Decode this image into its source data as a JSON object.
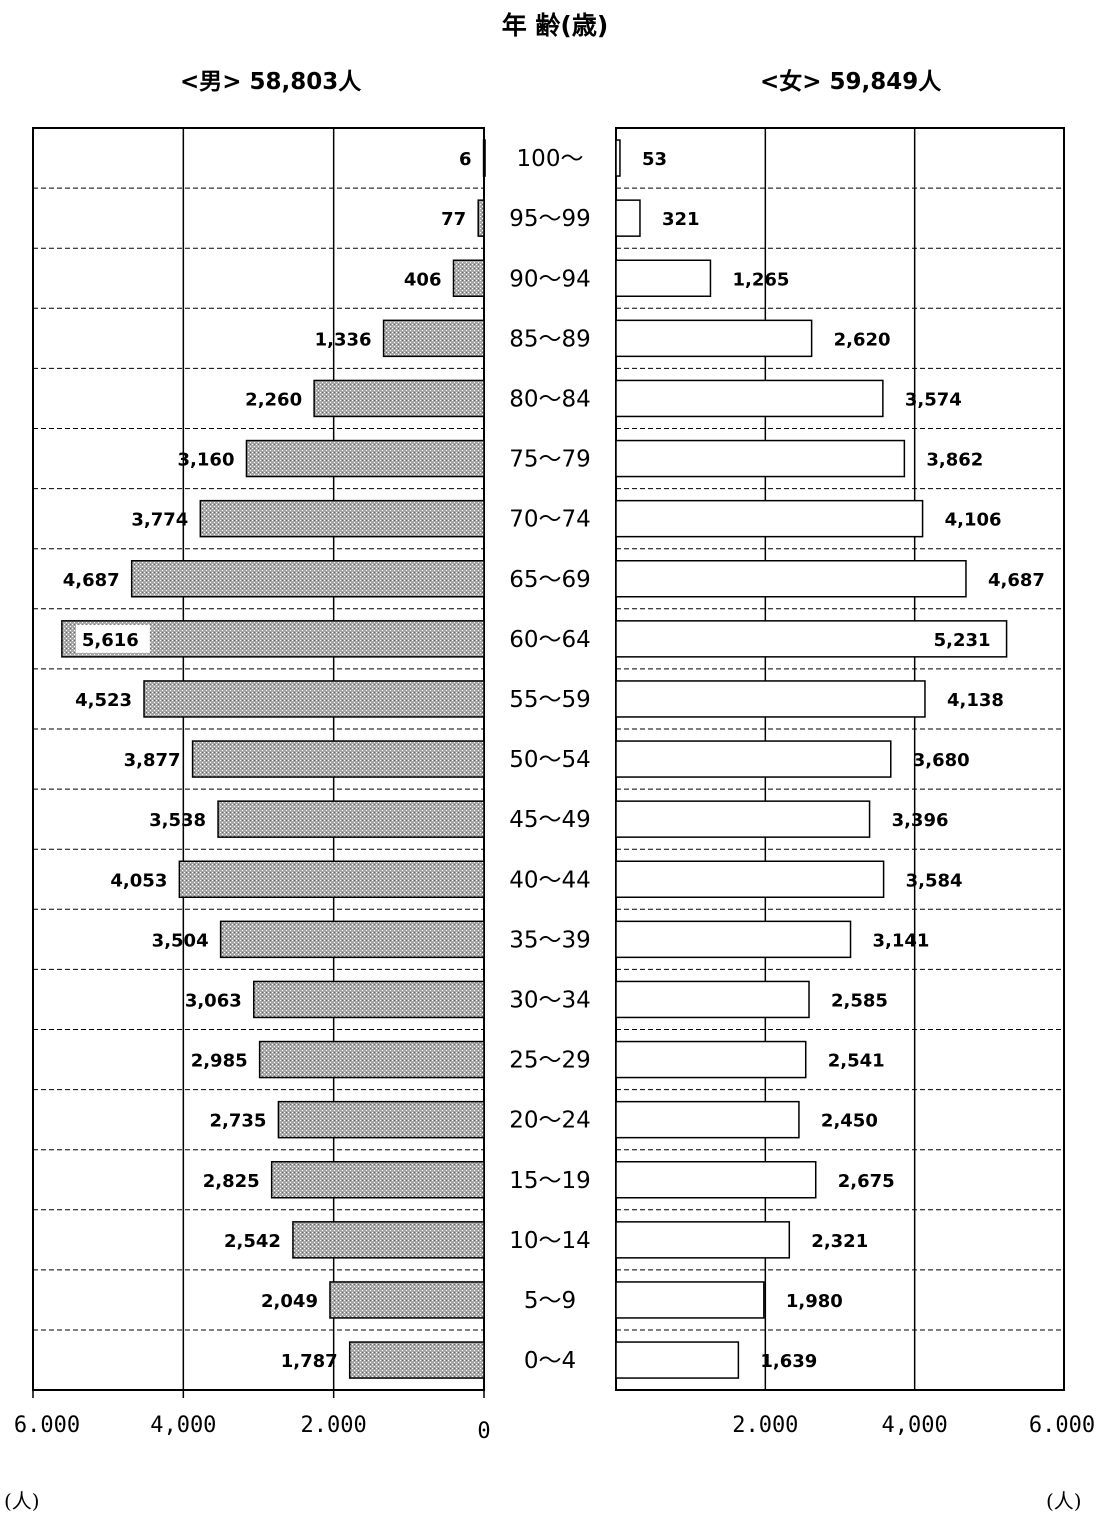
{
  "chart_data": {
    "type": "bar",
    "title": "年 齢(歳)",
    "categories": [
      "100～",
      "95～99",
      "90～94",
      "85～89",
      "80～84",
      "75～79",
      "70～74",
      "65～69",
      "60～64",
      "55～59",
      "50～54",
      "45～49",
      "40～44",
      "35～39",
      "30～34",
      "25～29",
      "20～24",
      "15～19",
      "10～14",
      "5～9",
      "0～4"
    ],
    "series": [
      {
        "name": "<男> 58,803人",
        "values": [
          6,
          77,
          406,
          1336,
          2260,
          3160,
          3774,
          4687,
          5616,
          4523,
          3877,
          3538,
          4053,
          3504,
          3063,
          2985,
          2735,
          2825,
          2542,
          2049,
          1787
        ],
        "labels": [
          "6",
          "77",
          "406",
          "1,336",
          "2,260",
          "3,160",
          "3,774",
          "4,687",
          "5,616",
          "4,523",
          "3,877",
          "3,538",
          "4,053",
          "3,504",
          "3,063",
          "2,985",
          "2,735",
          "2,825",
          "2,542",
          "2,049",
          "1,787"
        ]
      },
      {
        "name": "<女> 59,849人",
        "values": [
          53,
          321,
          1265,
          2620,
          3574,
          3862,
          4106,
          4687,
          5231,
          4138,
          3680,
          3396,
          3584,
          3141,
          2585,
          2541,
          2450,
          2675,
          2321,
          1980,
          1639
        ],
        "labels": [
          "53",
          "321",
          "1,265",
          "2,620",
          "3,574",
          "3,862",
          "4,106",
          "4,687",
          "5,231",
          "4,138",
          "3,680",
          "3,396",
          "3,584",
          "3,141",
          "2,585",
          "2,541",
          "2,450",
          "2,675",
          "2,321",
          "1,980",
          "1,639"
        ]
      }
    ],
    "xlim": [
      0,
      6000
    ],
    "male_ticks": [
      "6.000",
      "4,000",
      "2.000",
      "0"
    ],
    "female_ticks": [
      "2.000",
      "4,000",
      "6.000"
    ],
    "unit": "(人)",
    "grid": true,
    "colors": {
      "male_fill": "#9a9a9a",
      "female_fill": "#ffffff",
      "line": "#000000"
    }
  }
}
